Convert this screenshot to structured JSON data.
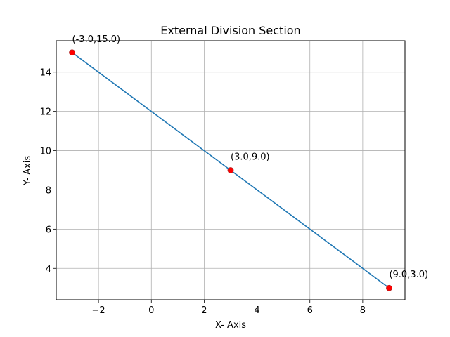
{
  "chart_data": {
    "type": "line",
    "title": "External Division Section",
    "xlabel": "X- Axis",
    "ylabel": "Y- Axis",
    "xlim": [
      -3.6,
      9.6
    ],
    "ylim": [
      2.4,
      15.6
    ],
    "xticks": [
      -2,
      0,
      2,
      4,
      6,
      8
    ],
    "xtick_labels": [
      "−2",
      "0",
      "2",
      "4",
      "6",
      "8"
    ],
    "yticks": [
      4,
      6,
      8,
      10,
      12,
      14
    ],
    "ytick_labels": [
      "4",
      "6",
      "8",
      "10",
      "12",
      "14"
    ],
    "grid": true,
    "line": {
      "x": [
        -3.0,
        9.0
      ],
      "y": [
        15.0,
        3.0
      ],
      "color": "#1f77b4"
    },
    "points": [
      {
        "x": -3.0,
        "y": 15.0,
        "label": "(-3.0,15.0)"
      },
      {
        "x": 3.0,
        "y": 9.0,
        "label": "(3.0,9.0)"
      },
      {
        "x": 9.0,
        "y": 3.0,
        "label": "(9.0,3.0)"
      }
    ],
    "point_color": "#ff0000",
    "point_edge_color": "#b22222"
  }
}
